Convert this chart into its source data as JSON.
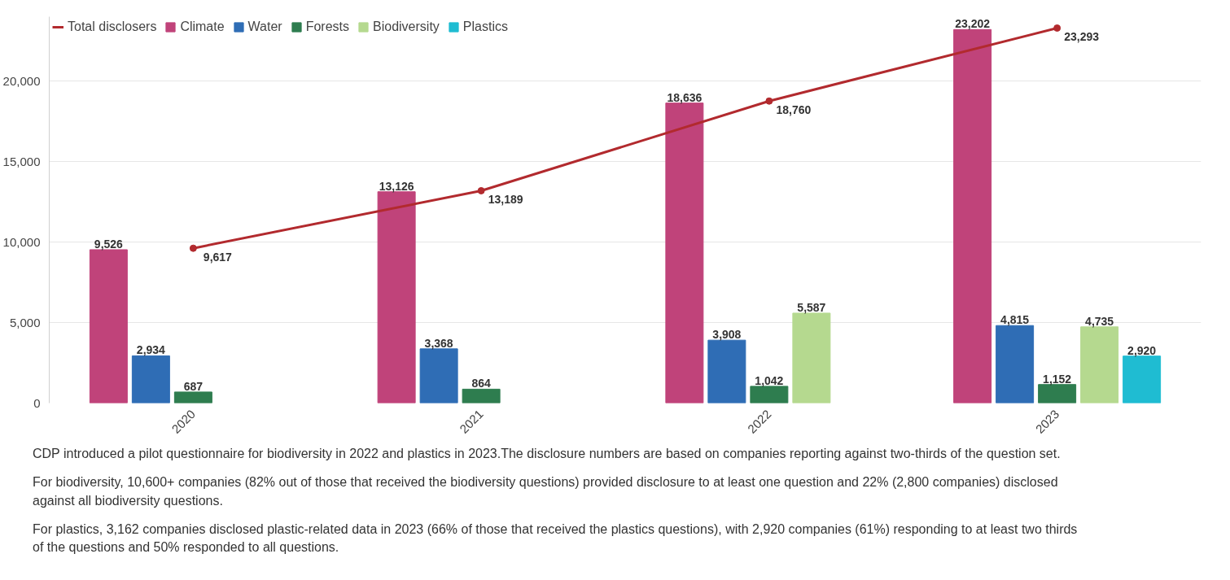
{
  "chart_data": {
    "type": "bar",
    "categories": [
      "2020",
      "2021",
      "2022",
      "2023"
    ],
    "series": [
      {
        "name": "Total disclosers",
        "type": "line",
        "color": "#b22a2e",
        "values": [
          9617,
          13189,
          18760,
          23293
        ],
        "value_labels": [
          "9,617",
          "13,189",
          "18,760",
          "23,293"
        ]
      },
      {
        "name": "Climate",
        "color": "#c0437a",
        "values": [
          9526,
          13126,
          18636,
          23202
        ],
        "value_labels": [
          "9,526",
          "13,126",
          "18,636",
          "23,202"
        ]
      },
      {
        "name": "Water",
        "color": "#2f6db5",
        "values": [
          2934,
          3368,
          3908,
          4815
        ],
        "value_labels": [
          "2,934",
          "3,368",
          "3,908",
          "4,815"
        ]
      },
      {
        "name": "Forests",
        "color": "#2e7d4f",
        "values": [
          687,
          864,
          1042,
          1152
        ],
        "value_labels": [
          "687",
          "864",
          "1,042",
          "1,152"
        ]
      },
      {
        "name": "Biodiversity",
        "color": "#b5d98f",
        "values": [
          null,
          null,
          5587,
          4735
        ],
        "value_labels": [
          null,
          null,
          "5,587",
          "4,735"
        ]
      },
      {
        "name": "Plastics",
        "color": "#1fbcd2",
        "values": [
          null,
          null,
          null,
          2920
        ],
        "value_labels": [
          null,
          null,
          null,
          "2,920"
        ]
      }
    ],
    "ylim": [
      0,
      24000
    ],
    "yticks": [
      {
        "value": 0,
        "label": "0"
      },
      {
        "value": 5000,
        "label": "5,000"
      },
      {
        "value": 10000,
        "label": "10,000"
      },
      {
        "value": 15000,
        "label": "15,000"
      },
      {
        "value": 20000,
        "label": "20,000"
      }
    ],
    "grid": "y",
    "legend": "top left",
    "marker": "circle",
    "annotations": [
      "CDP introduced a pilot questionnaire for biodiversity in 2022 and plastics in 2023.The disclosure numbers are based on companies reporting against two-thirds of the question set.",
      "For biodiversity, 10,600+ companies (82% out of those that received the biodiversity questions) provided disclosure to at least one question and 22% (2,800 companies) disclosed against all biodiversity questions.",
      "For plastics, 3,162 companies disclosed plastic-related data in 2023 (66% of those that received the plastics questions), with 2,920 companies (61%) responding to at least two thirds of the questions and 50% responded to all questions."
    ]
  }
}
